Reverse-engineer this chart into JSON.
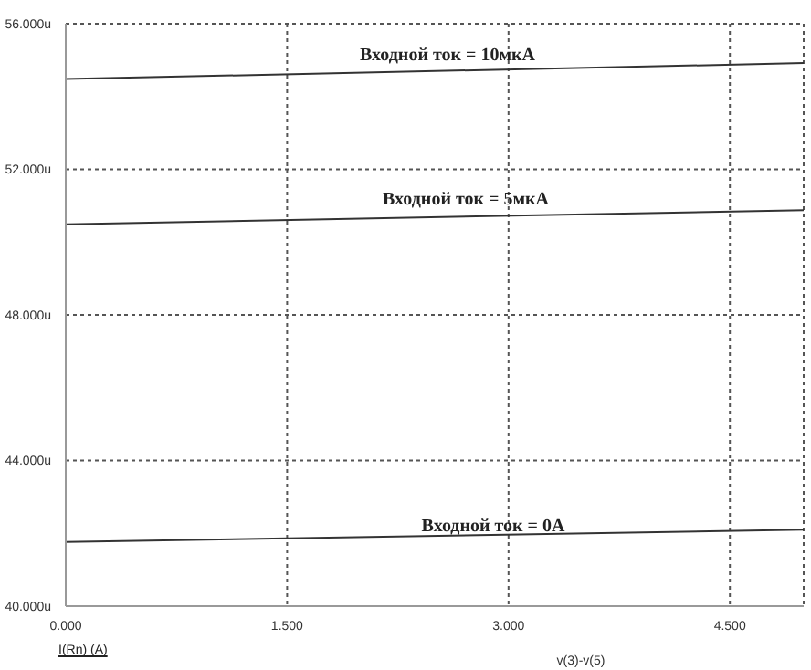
{
  "chart_data": {
    "type": "line",
    "xlabel": "v(3)-v(5)",
    "x": [
      0,
      5
    ],
    "series": [
      {
        "color": "#333333",
        "values": [
          54.48,
          54.92
        ]
      },
      {
        "color": "#333333",
        "values": [
          50.49,
          50.88
        ]
      },
      {
        "color": "#333333",
        "values": [
          41.76,
          42.1
        ]
      }
    ],
    "annotations": [
      "Входной ток = 10мкА",
      "Входной ток = 5мкА",
      "Входной ток = 0А",
      "I(Rn) (A)"
    ],
    "xlim": [
      0,
      5
    ],
    "xticks": [
      {
        "value": 0,
        "label": "0.000"
      },
      {
        "value": 1.5,
        "label": "1.500"
      },
      {
        "value": 3,
        "label": "3.000"
      },
      {
        "value": 4.5,
        "label": "4.500"
      }
    ],
    "ylim": [
      40,
      56
    ],
    "yticks": [
      {
        "value": 40,
        "label": "40.000u"
      },
      {
        "value": 44,
        "label": "44.000u"
      },
      {
        "value": 48,
        "label": "48.000u"
      },
      {
        "value": 52,
        "label": "52.000u"
      },
      {
        "value": 56,
        "label": "56.000u"
      }
    ],
    "grid": true,
    "marker": "none",
    "line_style": "solid"
  }
}
